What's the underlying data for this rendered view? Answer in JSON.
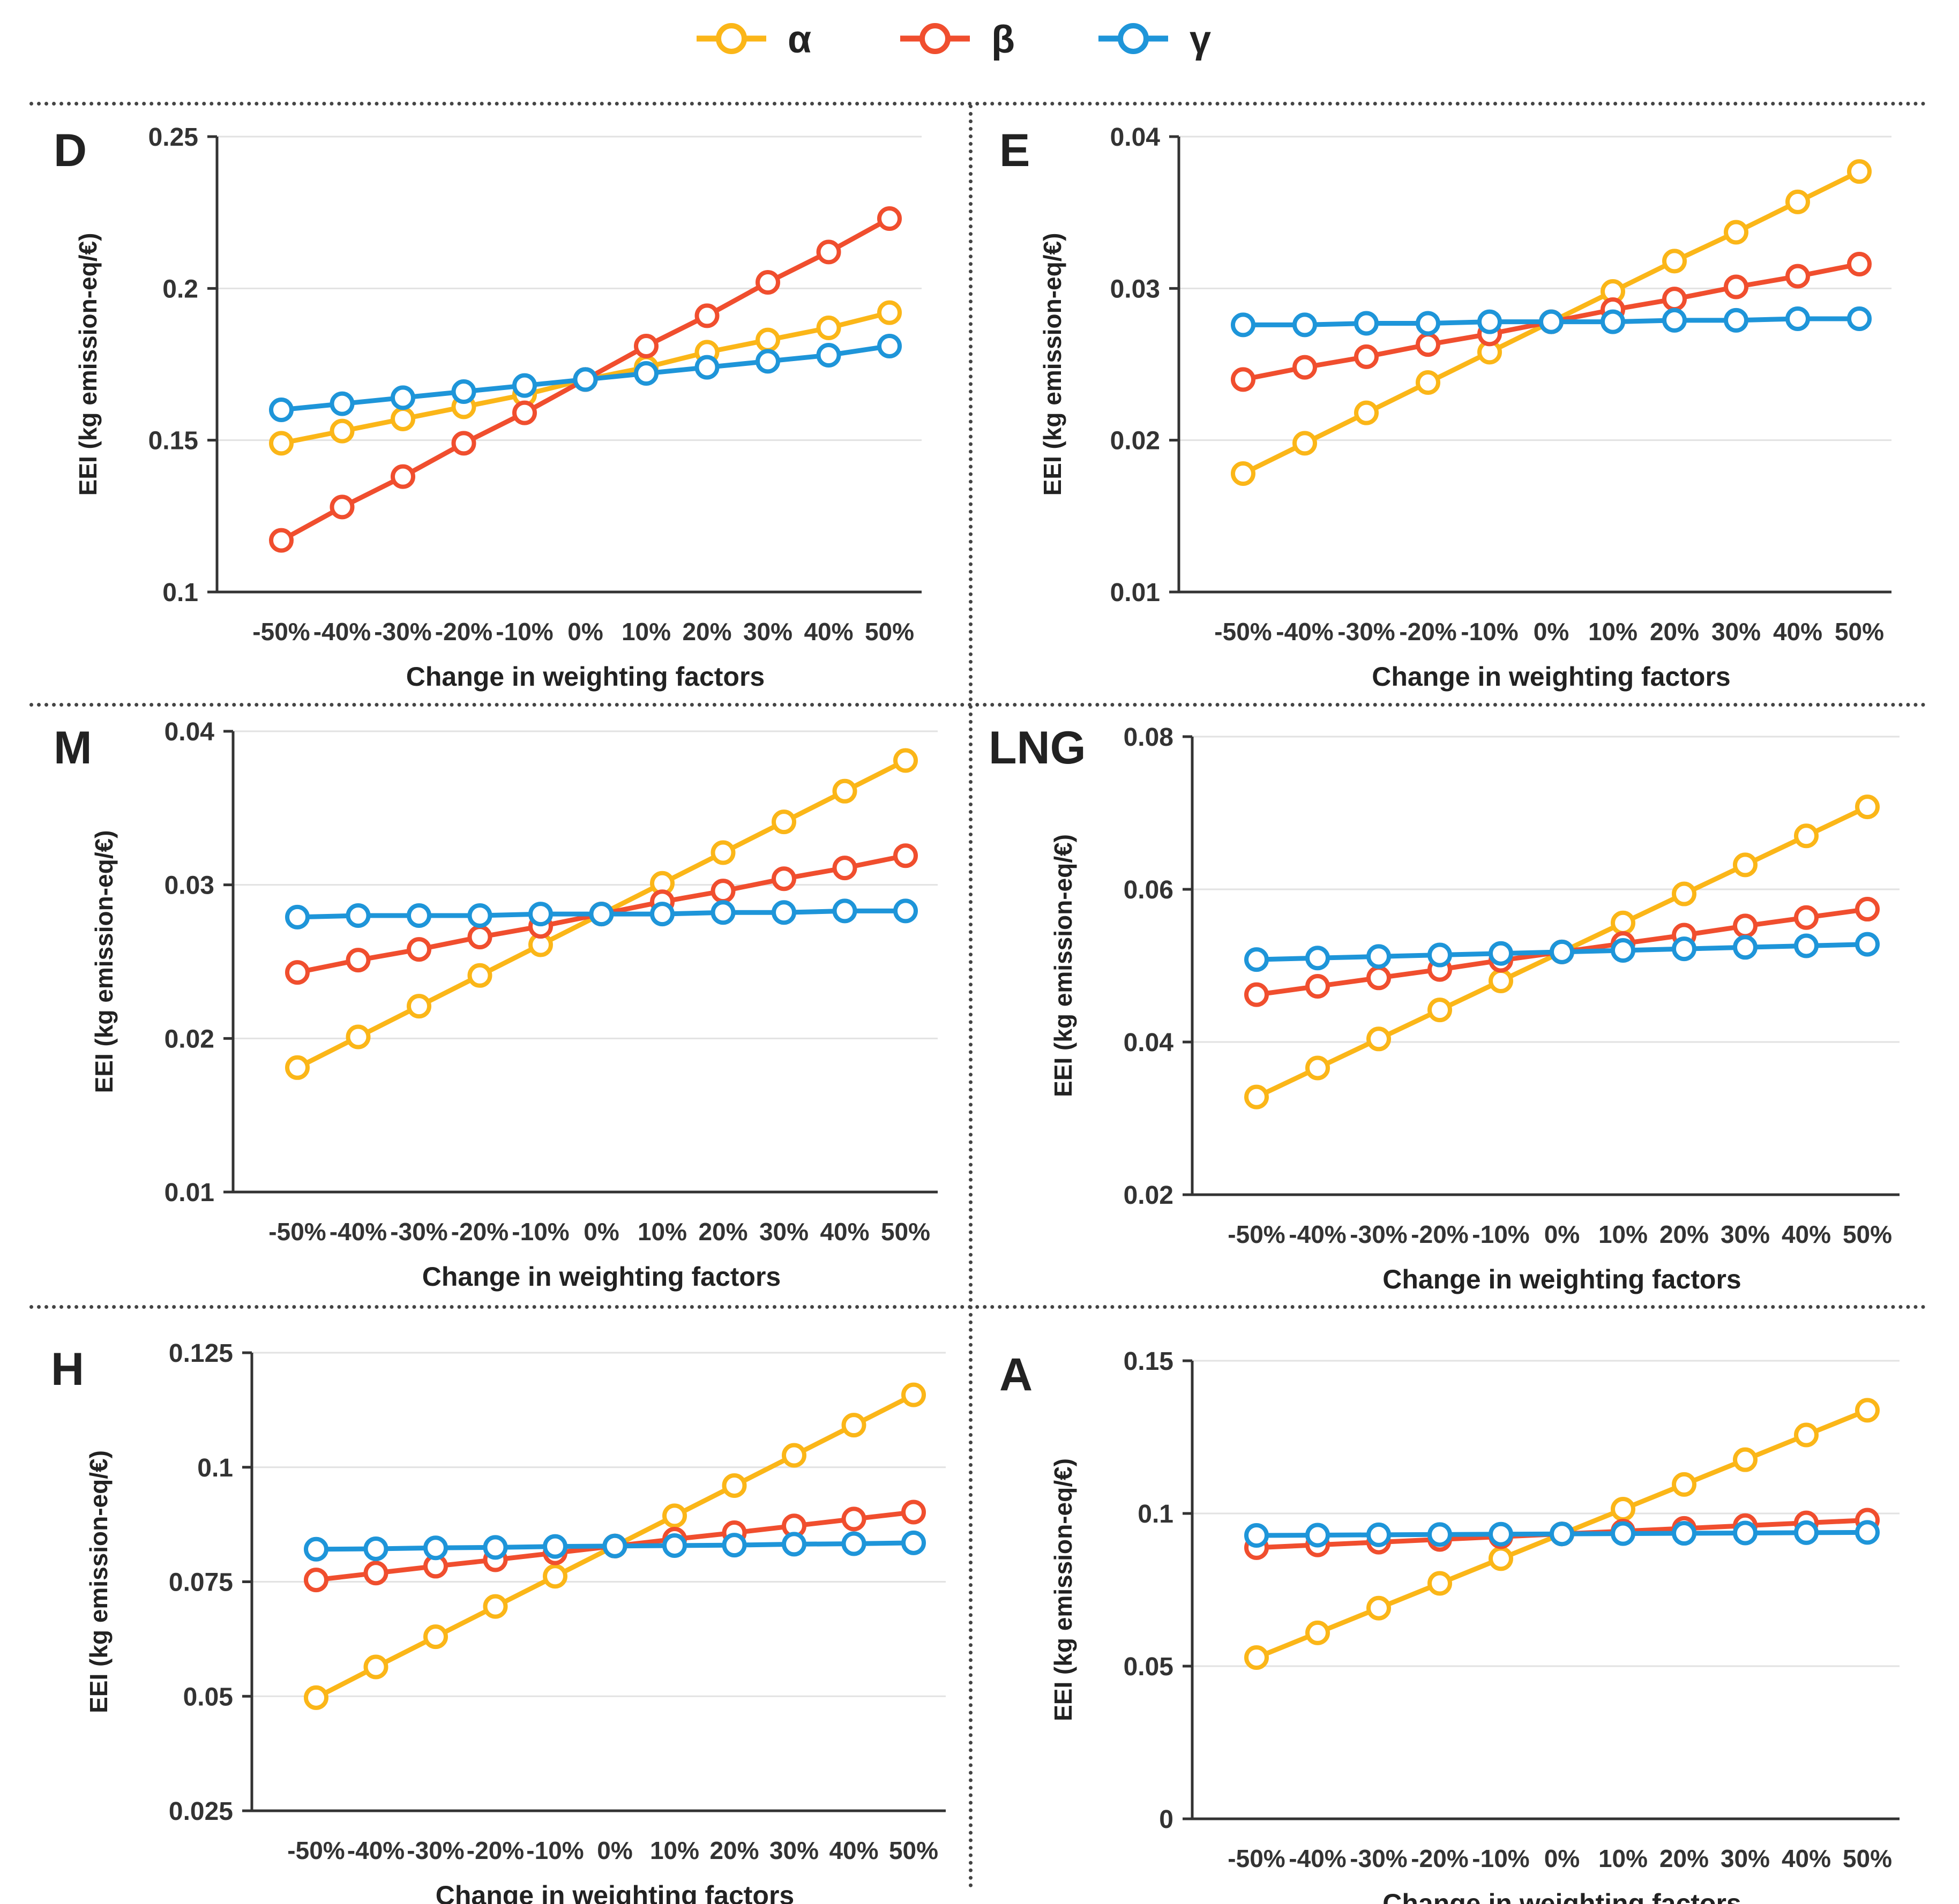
{
  "legend": [
    {
      "label": "α",
      "color": "#FBB618"
    },
    {
      "label": "β",
      "color": "#F04E2E"
    },
    {
      "label": "γ",
      "color": "#1E95D9"
    }
  ],
  "chart_data": [
    {
      "type": "line",
      "panel_label": "D",
      "categories": [
        "-50%",
        "-40%",
        "-30%",
        "-20%",
        "-10%",
        "0%",
        "10%",
        "20%",
        "30%",
        "40%",
        "50%"
      ],
      "xlabel": "Change in weighting factors",
      "ylabel": "EEI (kg emission-eq/€)",
      "ylim": [
        0.1,
        0.25
      ],
      "yticks": [
        0.1,
        0.15,
        0.2,
        0.25
      ],
      "ytick_labels": [
        "0.1",
        "0.15",
        "0.2",
        "0.25"
      ],
      "series": [
        {
          "name": "α",
          "values": [
            0.149,
            0.153,
            0.157,
            0.161,
            0.165,
            0.17,
            0.174,
            0.179,
            0.183,
            0.187,
            0.192
          ]
        },
        {
          "name": "β",
          "values": [
            0.117,
            0.128,
            0.138,
            0.149,
            0.159,
            0.17,
            0.181,
            0.191,
            0.202,
            0.212,
            0.223
          ]
        },
        {
          "name": "γ",
          "values": [
            0.16,
            0.162,
            0.164,
            0.166,
            0.168,
            0.17,
            0.172,
            0.174,
            0.176,
            0.178,
            0.181
          ]
        }
      ]
    },
    {
      "type": "line",
      "panel_label": "E",
      "categories": [
        "-50%",
        "-40%",
        "-30%",
        "-20%",
        "-10%",
        "0%",
        "10%",
        "20%",
        "30%",
        "40%",
        "50%"
      ],
      "xlabel": "Change in weighting factors",
      "ylabel": "EEI (kg emission-eq/€)",
      "ylim": [
        0.01,
        0.04
      ],
      "yticks": [
        0.01,
        0.02,
        0.03,
        0.04
      ],
      "ytick_labels": [
        "0.01",
        "0.02",
        "0.03",
        "0.04"
      ],
      "series": [
        {
          "name": "α",
          "values": [
            0.0178,
            0.0198,
            0.0218,
            0.0238,
            0.0258,
            0.0278,
            0.0298,
            0.0318,
            0.0337,
            0.0357,
            0.0377
          ]
        },
        {
          "name": "β",
          "values": [
            0.024,
            0.0248,
            0.0255,
            0.0263,
            0.027,
            0.0278,
            0.0286,
            0.0293,
            0.0301,
            0.0308,
            0.0316
          ]
        },
        {
          "name": "γ",
          "values": [
            0.0276,
            0.0276,
            0.0277,
            0.0277,
            0.0278,
            0.0278,
            0.0278,
            0.0279,
            0.0279,
            0.028,
            0.028
          ]
        }
      ]
    },
    {
      "type": "line",
      "panel_label": "M",
      "categories": [
        "-50%",
        "-40%",
        "-30%",
        "-20%",
        "-10%",
        "0%",
        "10%",
        "20%",
        "30%",
        "40%",
        "50%"
      ],
      "xlabel": "Change in weighting factors",
      "ylabel": "EEI (kg emission-eq/€)",
      "ylim": [
        0.01,
        0.04
      ],
      "yticks": [
        0.01,
        0.02,
        0.03,
        0.04
      ],
      "ytick_labels": [
        "0.01",
        "0.02",
        "0.03",
        "0.04"
      ],
      "series": [
        {
          "name": "α",
          "values": [
            0.0181,
            0.0201,
            0.0221,
            0.0241,
            0.0261,
            0.0281,
            0.0301,
            0.0321,
            0.0341,
            0.0361,
            0.0381
          ]
        },
        {
          "name": "β",
          "values": [
            0.0243,
            0.0251,
            0.0258,
            0.0266,
            0.0273,
            0.0281,
            0.0289,
            0.0296,
            0.0304,
            0.0311,
            0.0319
          ]
        },
        {
          "name": "γ",
          "values": [
            0.0279,
            0.028,
            0.028,
            0.028,
            0.0281,
            0.0281,
            0.0281,
            0.0282,
            0.0282,
            0.0283,
            0.0283
          ]
        }
      ]
    },
    {
      "type": "line",
      "panel_label": "LNG",
      "categories": [
        "-50%",
        "-40%",
        "-30%",
        "-20%",
        "-10%",
        "0%",
        "10%",
        "20%",
        "30%",
        "40%",
        "50%"
      ],
      "xlabel": "Change in weighting factors",
      "ylabel": "EEI (kg emission-eq/€)",
      "ylim": [
        0.02,
        0.08
      ],
      "yticks": [
        0.02,
        0.04,
        0.06,
        0.08
      ],
      "ytick_labels": [
        "0.02",
        "0.04",
        "0.06",
        "0.08"
      ],
      "series": [
        {
          "name": "α",
          "values": [
            0.0328,
            0.0366,
            0.0404,
            0.0442,
            0.048,
            0.0518,
            0.0556,
            0.0594,
            0.0632,
            0.067,
            0.0708
          ]
        },
        {
          "name": "β",
          "values": [
            0.0462,
            0.0473,
            0.0484,
            0.0495,
            0.0507,
            0.0518,
            0.0529,
            0.054,
            0.0552,
            0.0563,
            0.0574
          ]
        },
        {
          "name": "γ",
          "values": [
            0.0508,
            0.051,
            0.0512,
            0.0514,
            0.0516,
            0.0518,
            0.052,
            0.0522,
            0.0524,
            0.0526,
            0.0528
          ]
        }
      ]
    },
    {
      "type": "line",
      "panel_label": "H",
      "categories": [
        "-50%",
        "-40%",
        "-30%",
        "-20%",
        "-10%",
        "0%",
        "10%",
        "20%",
        "30%",
        "40%",
        "50%"
      ],
      "xlabel": "Change in weighting factors",
      "ylabel": "EEI (kg emission-eq/€)",
      "ylim": [
        0.025,
        0.125
      ],
      "yticks": [
        0.025,
        0.05,
        0.075,
        0.1,
        0.125
      ],
      "ytick_labels": [
        "0.025",
        "0.05",
        "0.075",
        "0.1",
        "0.125"
      ],
      "series": [
        {
          "name": "α",
          "values": [
            0.0497,
            0.0564,
            0.063,
            0.0696,
            0.0762,
            0.0828,
            0.0894,
            0.096,
            0.1026,
            0.1092,
            0.1158
          ]
        },
        {
          "name": "β",
          "values": [
            0.0754,
            0.0769,
            0.0784,
            0.0798,
            0.0813,
            0.0828,
            0.0843,
            0.0857,
            0.0872,
            0.0887,
            0.0902
          ]
        },
        {
          "name": "γ",
          "values": [
            0.0821,
            0.0822,
            0.0824,
            0.0825,
            0.0827,
            0.0828,
            0.0829,
            0.083,
            0.0832,
            0.0833,
            0.0835
          ]
        }
      ]
    },
    {
      "type": "line",
      "panel_label": "A",
      "categories": [
        "-50%",
        "-40%",
        "-30%",
        "-20%",
        "-10%",
        "0%",
        "10%",
        "20%",
        "30%",
        "40%",
        "50%"
      ],
      "xlabel": "Change in weighting factors",
      "ylabel": "EEI (kg emission-eq/€)",
      "ylim": [
        0,
        0.15
      ],
      "yticks": [
        0,
        0.05,
        0.1,
        0.15
      ],
      "ytick_labels": [
        "0",
        "0.05",
        "0.1",
        "0.15"
      ],
      "series": [
        {
          "name": "α",
          "values": [
            0.0528,
            0.0609,
            0.069,
            0.0771,
            0.0852,
            0.0933,
            0.1014,
            0.1095,
            0.1176,
            0.1257,
            0.1338
          ]
        },
        {
          "name": "β",
          "values": [
            0.0888,
            0.0897,
            0.0906,
            0.0915,
            0.0924,
            0.0933,
            0.0942,
            0.0951,
            0.096,
            0.0969,
            0.0978
          ]
        },
        {
          "name": "γ",
          "values": [
            0.0928,
            0.0929,
            0.093,
            0.0931,
            0.0932,
            0.0933,
            0.0934,
            0.0935,
            0.0936,
            0.0937,
            0.0938
          ]
        }
      ]
    }
  ]
}
